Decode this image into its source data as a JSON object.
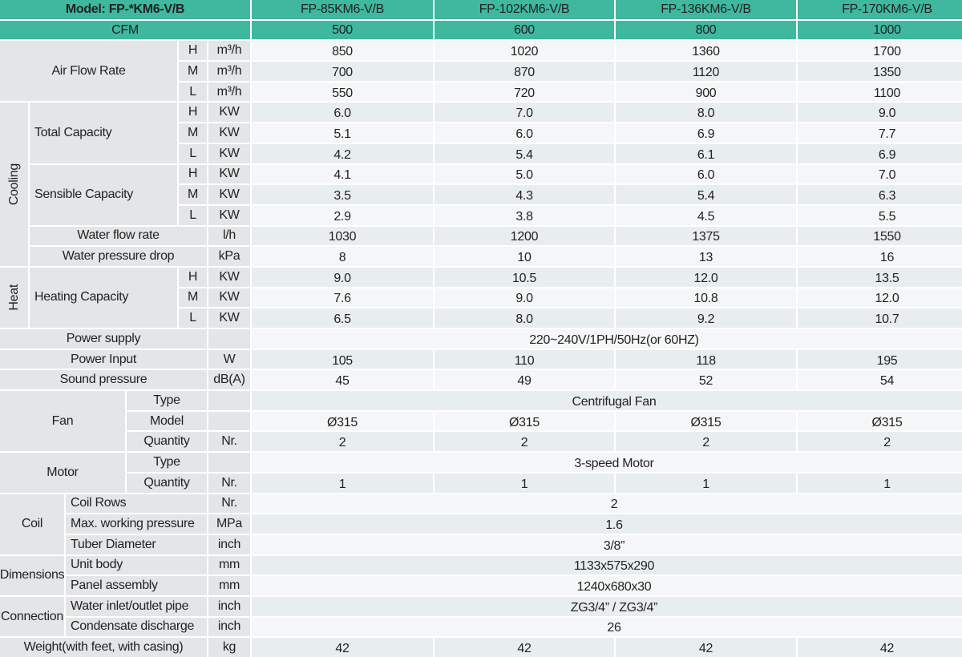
{
  "table": {
    "header": {
      "model": "Model: FP-*KM6-V/B",
      "cfm": "CFM",
      "models": [
        "FP-85KM6-V/B",
        "FP-102KM6-V/B",
        "FP-136KM6-V/B",
        "FP-170KM6-V/B"
      ],
      "cfm_values": [
        "500",
        "600",
        "800",
        "1000"
      ]
    },
    "sections": [
      {
        "label": "Air Flow Rate",
        "rows": [
          {
            "level": "H",
            "unit": "m³/h",
            "values": [
              "850",
              "1020",
              "1360",
              "1700"
            ]
          },
          {
            "level": "M",
            "unit": "m³/h",
            "values": [
              "700",
              "870",
              "1120",
              "1350"
            ]
          },
          {
            "level": "L",
            "unit": "m³/h",
            "values": [
              "550",
              "720",
              "900",
              "1100"
            ]
          }
        ]
      },
      {
        "label": "Cooling",
        "subsections": [
          {
            "label": "Total Capacity",
            "rows": [
              {
                "level": "H",
                "unit": "KW",
                "values": [
                  "6.0",
                  "7.0",
                  "8.0",
                  "9.0"
                ]
              },
              {
                "level": "M",
                "unit": "KW",
                "values": [
                  "5.1",
                  "6.0",
                  "6.9",
                  "7.7"
                ]
              },
              {
                "level": "L",
                "unit": "KW",
                "values": [
                  "4.2",
                  "5.4",
                  "6.1",
                  "6.9"
                ]
              }
            ]
          },
          {
            "label": "Sensible Capacity",
            "rows": [
              {
                "level": "H",
                "unit": "KW",
                "values": [
                  "4.1",
                  "5.0",
                  "6.0",
                  "7.0"
                ]
              },
              {
                "level": "M",
                "unit": "KW",
                "values": [
                  "3.5",
                  "4.3",
                  "5.4",
                  "6.3"
                ]
              },
              {
                "level": "L",
                "unit": "KW",
                "values": [
                  "2.9",
                  "3.8",
                  "4.5",
                  "5.5"
                ]
              }
            ]
          },
          {
            "label": "Water flow rate",
            "rows": [
              {
                "unit": "l/h",
                "values": [
                  "1030",
                  "1200",
                  "1375",
                  "1550"
                ]
              }
            ]
          },
          {
            "label": "Water pressure drop",
            "rows": [
              {
                "unit": "kPa",
                "values": [
                  "8",
                  "10",
                  "13",
                  "16"
                ]
              }
            ]
          }
        ]
      },
      {
        "label": "Heat",
        "subsections": [
          {
            "label": "Heating Capacity",
            "rows": [
              {
                "level": "H",
                "unit": "KW",
                "values": [
                  "9.0",
                  "10.5",
                  "12.0",
                  "13.5"
                ]
              },
              {
                "level": "M",
                "unit": "KW",
                "values": [
                  "7.6",
                  "9.0",
                  "10.8",
                  "12.0"
                ]
              },
              {
                "level": "L",
                "unit": "KW",
                "values": [
                  "6.5",
                  "8.0",
                  "9.2",
                  "10.7"
                ]
              }
            ]
          }
        ]
      },
      {
        "label": "Power supply",
        "rows": [
          {
            "value": "220~240V/1PH/50Hz(or 60HZ)"
          }
        ]
      },
      {
        "label": "Power Input",
        "rows": [
          {
            "unit": "W",
            "values": [
              "105",
              "110",
              "118",
              "195"
            ]
          }
        ]
      },
      {
        "label": "Sound pressure",
        "rows": [
          {
            "unit": "dB(A)",
            "values": [
              "45",
              "49",
              "52",
              "54"
            ]
          }
        ]
      },
      {
        "label": "Fan",
        "rows": [
          {
            "item": "Type",
            "value": "Centrifugal Fan"
          },
          {
            "item": "Model",
            "values": [
              "Ø315",
              "Ø315",
              "Ø315",
              "Ø315"
            ]
          },
          {
            "item": "Quantity",
            "unit": "Nr.",
            "values": [
              "2",
              "2",
              "2",
              "2"
            ]
          }
        ]
      },
      {
        "label": "Motor",
        "rows": [
          {
            "item": "Type",
            "value": "3-speed Motor"
          },
          {
            "item": "Quantity",
            "unit": "Nr.",
            "values": [
              "1",
              "1",
              "1",
              "1"
            ]
          }
        ]
      },
      {
        "label": "Coil",
        "rows": [
          {
            "item": "Coil Rows",
            "unit": "Nr.",
            "value": "2"
          },
          {
            "item": "Max. working pressure",
            "unit": "MPa",
            "value": "1.6"
          },
          {
            "item": "Tuber Diameter",
            "unit": "inch",
            "value": "3/8”"
          }
        ]
      },
      {
        "label": "Dimensions",
        "rows": [
          {
            "item": "Unit body",
            "unit": "mm",
            "value": "1133x575x290"
          },
          {
            "item": "Panel assembly",
            "unit": "mm",
            "value": "1240x680x30"
          }
        ]
      },
      {
        "label": "Connection",
        "rows": [
          {
            "item": "Water inlet/outlet pipe",
            "unit": "inch",
            "value": "ZG3/4” / ZG3/4”"
          },
          {
            "item": "Condensate discharge",
            "unit": "inch",
            "value": "26"
          }
        ]
      },
      {
        "label": "Weight(with feet, with casing)",
        "rows": [
          {
            "unit": "kg",
            "values": [
              "42",
              "42",
              "42",
              "42"
            ]
          }
        ]
      }
    ]
  }
}
